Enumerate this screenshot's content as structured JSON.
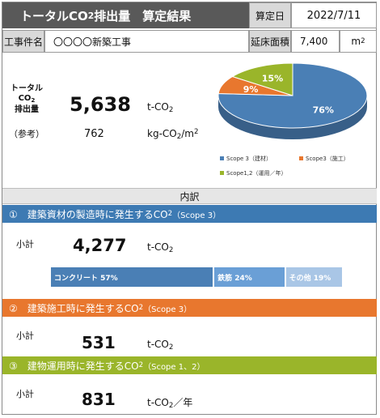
{
  "header": {
    "title_main": "トータルCO",
    "title_sub": "2",
    "title_rest": "排出量　算定結果",
    "date_label": "算定日",
    "date_value": "2022/7/11"
  },
  "project": {
    "name_label": "工事件名",
    "name_value": "〇〇〇〇新築工事",
    "area_label": "延床面積",
    "area_value": "7,400",
    "area_unit_base": "m",
    "area_unit_sup": "2"
  },
  "summary": {
    "total_label_1": "トータル",
    "total_label_2": "CO",
    "total_label_2_sub": "2",
    "total_label_3": "排出量",
    "total_value": "5,638",
    "total_unit_base": "t-CO",
    "total_unit_sub": "2",
    "ref_label": "（参考）",
    "ref_value": "762",
    "ref_unit_1": "kg-CO",
    "ref_unit_sub": "2",
    "ref_unit_2": "/m",
    "ref_unit_sup": "2"
  },
  "chart_data": {
    "type": "pie",
    "slices": [
      {
        "name": "Scope 3（建材）",
        "value": 76,
        "label": "76%",
        "color": "#4a7fb5"
      },
      {
        "name": "Scope3（施工）",
        "value": 9,
        "label": "9%",
        "color": "#e8772e"
      },
      {
        "name": "Scope1,2（運用／年）",
        "value": 15,
        "label": "15%",
        "color": "#9ab52a"
      }
    ],
    "legend_position": "bottom"
  },
  "breakdown_label": "内訳",
  "section1": {
    "title": "①　建築資材の製造時に発生するCO",
    "title_sub": "2",
    "title_tail": "（Scope 3）",
    "color": "#3d7ab3",
    "subtotal_label": "小計",
    "value": "4,277",
    "unit_base": "t-CO",
    "unit_sub": "2",
    "materials": [
      {
        "label": "コンクリート 57%",
        "share": 57,
        "color": "#4a7fb5"
      },
      {
        "label": "鉄筋 24%",
        "share": 24,
        "color": "#6a9fd6"
      },
      {
        "label": "その他 19%",
        "share": 19,
        "color": "#a9c6e6"
      }
    ]
  },
  "section2": {
    "title": "②　建築施工時に発生するCO",
    "title_sub": "2",
    "title_tail": "（Scope 3）",
    "color": "#e8772e",
    "subtotal_label": "小計",
    "value": "531",
    "unit_base": "t-CO",
    "unit_sub": "2"
  },
  "section3": {
    "title": "③　建物運用時に発生するCO",
    "title_sub": "2",
    "title_tail": "（Scope 1、2）",
    "color": "#9ab52a",
    "subtotal_label": "小計",
    "value": "831",
    "unit_base": "t-CO",
    "unit_sub": "2",
    "unit_tail": "／年"
  }
}
